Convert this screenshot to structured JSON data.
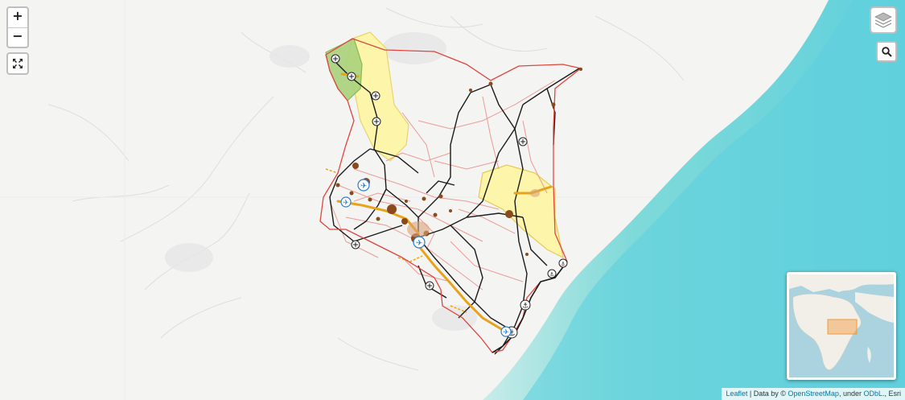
{
  "zoom": {
    "in_label": "+",
    "out_label": "−"
  },
  "controls": {
    "fullscreen_icon": "fullscreen-icon",
    "layers_icon": "layers-icon",
    "search_icon": "search-icon"
  },
  "attribution": {
    "leaflet_link": "Leaflet",
    "separator": " | Data by © ",
    "osm_link": "OpenStreetMap",
    "under_text": ", under ",
    "license_link": "ODbL",
    "suffix": "., Esri"
  },
  "layers": {
    "country_border": "Kenya",
    "highlighted_regions": [
      "north-west region",
      "north-central region",
      "eastern region"
    ],
    "point_types": [
      "airport",
      "port",
      "border-crossing",
      "city"
    ]
  },
  "colors": {
    "sea": "#67d4dc",
    "land": "#f4f4f2",
    "border": "#e0453f",
    "major_road": "#1a1a1a",
    "minor_road": "#ec9b96",
    "corridor": "#e8a31a",
    "region_yellow": "#fdf6a7",
    "region_green": "#a9d27c",
    "city": "#8a4a1c",
    "airport": "#2b7bd1",
    "minimap_highlight": "#f19a3a"
  }
}
